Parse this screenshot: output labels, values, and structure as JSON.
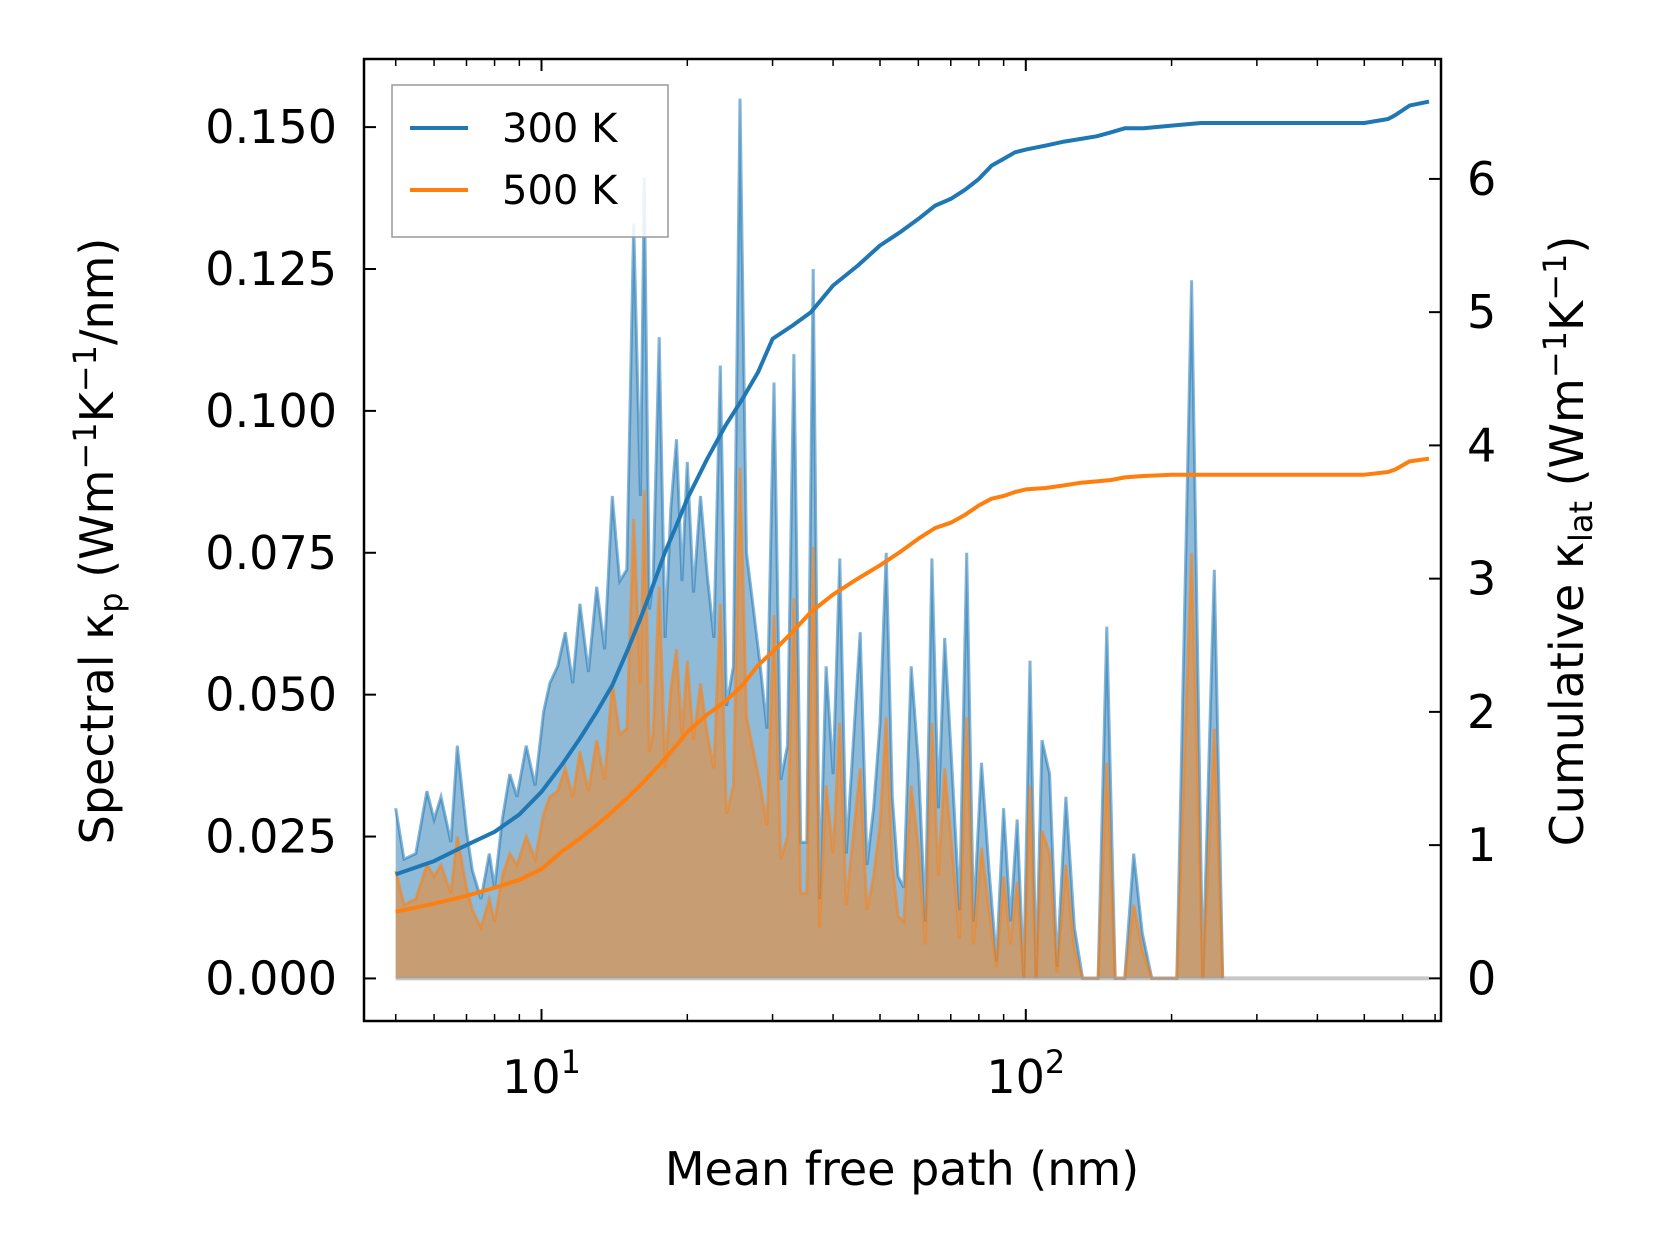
{
  "chart_data": {
    "type": "area",
    "title": "",
    "xlabel": "Mean free path (nm)",
    "xscale": "log",
    "xlim": [
      4.3,
      720
    ],
    "x_ticks": [
      {
        "value": 10,
        "base": "10",
        "exp": "1"
      },
      {
        "value": 100,
        "base": "10",
        "exp": "2"
      }
    ],
    "ylabel_left": {
      "pre": "Spectral κ",
      "sub": "p",
      "mid": " (Wm",
      "sup1": "−1",
      "k": "K",
      "sup2": "−1",
      "post": "/nm)"
    },
    "ylim_left": [
      -0.0075,
      0.162
    ],
    "yticks_left": [
      "0.000",
      "0.025",
      "0.050",
      "0.075",
      "0.100",
      "0.125",
      "0.150"
    ],
    "ylabel_right": {
      "pre": "Cumulative κ",
      "sub": "lat",
      "mid": " (Wm",
      "sup1": "−1",
      "k": "K",
      "sup2": "−1",
      "post": ")"
    },
    "ylim_right": [
      -0.32,
      6.9
    ],
    "yticks_right": [
      "0",
      "1",
      "2",
      "3",
      "4",
      "5",
      "6"
    ],
    "legend": {
      "position": "top-left",
      "entries": [
        "300 K",
        "500 K"
      ]
    },
    "colors": {
      "300 K": "#1f77b4",
      "500 K": "#ff7f0e"
    },
    "spectral": {
      "x": [
        5.0,
        5.2,
        5.5,
        5.8,
        6.0,
        6.2,
        6.5,
        6.7,
        7.0,
        7.2,
        7.5,
        7.8,
        8.0,
        8.3,
        8.6,
        8.9,
        9.3,
        9.7,
        10.1,
        10.4,
        10.8,
        11.2,
        11.6,
        12.0,
        12.5,
        13.0,
        13.5,
        14.0,
        14.5,
        15.0,
        15.5,
        16.0,
        16.3,
        16.7,
        17.0,
        17.5,
        18.0,
        18.5,
        19.0,
        19.5,
        20.0,
        20.6,
        21.3,
        22.0,
        22.7,
        23.4,
        24.1,
        24.9,
        25.7,
        26.5,
        27.4,
        28.3,
        29.2,
        30.2,
        31.2,
        32.2,
        33.2,
        34.3,
        35.3,
        36.4,
        37.5,
        38.7,
        40.0,
        41.3,
        42.6,
        44.0,
        45.5,
        47.0,
        48.5,
        50.0,
        51.5,
        53.0,
        54.5,
        56.0,
        58.0,
        60.0,
        62.0,
        64.0,
        66.0,
        68.0,
        70.5,
        73.0,
        75.5,
        78.0,
        81.0,
        84.0,
        87.0,
        90.0,
        93.0,
        96.0,
        99.0,
        102.0,
        105.0,
        108.0,
        112.0,
        116.0,
        121.0,
        126.0,
        131.0,
        136.0,
        141.0,
        147.0,
        153.0,
        160.0,
        167.0,
        174.0,
        182.0,
        205.0,
        220.0,
        232.0,
        245.0,
        255.0,
        265.0,
        330.0,
        430.0,
        560.0,
        575.0,
        590.0,
        605.0,
        620.0,
        635.0,
        650.0,
        665.0,
        680.0
      ],
      "300 K": [
        0.03,
        0.021,
        0.022,
        0.033,
        0.028,
        0.032,
        0.024,
        0.041,
        0.026,
        0.019,
        0.014,
        0.022,
        0.016,
        0.028,
        0.036,
        0.032,
        0.041,
        0.034,
        0.047,
        0.052,
        0.055,
        0.061,
        0.052,
        0.066,
        0.054,
        0.069,
        0.058,
        0.085,
        0.07,
        0.072,
        0.133,
        0.085,
        0.141,
        0.065,
        0.07,
        0.113,
        0.06,
        0.083,
        0.095,
        0.07,
        0.091,
        0.068,
        0.085,
        0.071,
        0.06,
        0.108,
        0.048,
        0.055,
        0.155,
        0.075,
        0.065,
        0.055,
        0.044,
        0.105,
        0.035,
        0.041,
        0.11,
        0.024,
        0.024,
        0.125,
        0.014,
        0.055,
        0.036,
        0.074,
        0.022,
        0.041,
        0.061,
        0.02,
        0.03,
        0.045,
        0.075,
        0.032,
        0.018,
        0.016,
        0.055,
        0.038,
        0.01,
        0.074,
        0.03,
        0.06,
        0.036,
        0.012,
        0.075,
        0.01,
        0.038,
        0.019,
        0.003,
        0.03,
        0.01,
        0.028,
        0.0,
        0.056,
        0.0,
        0.042,
        0.036,
        0.002,
        0.032,
        0.009,
        0.0,
        0.0,
        0.0,
        0.062,
        0.0,
        0.0,
        0.022,
        0.008,
        0.0,
        0.0,
        0.123,
        0.0,
        0.072,
        0.0
      ],
      "500 K": [
        0.019,
        0.013,
        0.014,
        0.02,
        0.018,
        0.02,
        0.015,
        0.025,
        0.016,
        0.012,
        0.009,
        0.014,
        0.01,
        0.018,
        0.022,
        0.02,
        0.025,
        0.021,
        0.029,
        0.032,
        0.033,
        0.037,
        0.032,
        0.04,
        0.033,
        0.042,
        0.035,
        0.052,
        0.043,
        0.044,
        0.081,
        0.052,
        0.086,
        0.04,
        0.043,
        0.069,
        0.037,
        0.051,
        0.058,
        0.043,
        0.056,
        0.042,
        0.052,
        0.043,
        0.037,
        0.066,
        0.029,
        0.034,
        0.09,
        0.046,
        0.04,
        0.034,
        0.027,
        0.064,
        0.021,
        0.025,
        0.067,
        0.015,
        0.015,
        0.076,
        0.009,
        0.034,
        0.022,
        0.045,
        0.013,
        0.025,
        0.037,
        0.012,
        0.018,
        0.027,
        0.046,
        0.02,
        0.011,
        0.01,
        0.034,
        0.023,
        0.006,
        0.045,
        0.018,
        0.037,
        0.022,
        0.007,
        0.046,
        0.006,
        0.023,
        0.012,
        0.002,
        0.018,
        0.006,
        0.017,
        0.0,
        0.034,
        0.0,
        0.026,
        0.022,
        0.001,
        0.02,
        0.005,
        0.0,
        0.0,
        0.0,
        0.038,
        0.0,
        0.0,
        0.013,
        0.005,
        0.0,
        0.0,
        0.075,
        0.0,
        0.044,
        0.0
      ]
    },
    "cumulative": {
      "x": [
        5.0,
        6.0,
        7.0,
        8.0,
        9.0,
        10.0,
        11.0,
        12.0,
        13.0,
        14.0,
        15.0,
        16.0,
        17.0,
        18.0,
        19.0,
        20.0,
        22.0,
        24.0,
        26.0,
        28.0,
        30.0,
        33.0,
        36.0,
        40.0,
        45.0,
        50.0,
        55.0,
        60.0,
        65.0,
        70.0,
        75.0,
        80.0,
        85.0,
        90.0,
        95.0,
        100.0,
        110.0,
        120.0,
        130.0,
        140.0,
        150.0,
        160.0,
        175.0,
        200.0,
        230.0,
        260.0,
        300.0,
        400.0,
        500.0,
        560.0,
        580.0,
        620.0,
        680.0
      ],
      "300 K": [
        0.78,
        0.88,
        1.0,
        1.1,
        1.23,
        1.4,
        1.6,
        1.8,
        2.0,
        2.2,
        2.45,
        2.7,
        2.95,
        3.2,
        3.4,
        3.6,
        3.9,
        4.15,
        4.35,
        4.55,
        4.8,
        4.9,
        5.0,
        5.2,
        5.35,
        5.5,
        5.6,
        5.7,
        5.8,
        5.85,
        5.92,
        6.0,
        6.1,
        6.15,
        6.2,
        6.22,
        6.25,
        6.28,
        6.3,
        6.32,
        6.35,
        6.38,
        6.38,
        6.4,
        6.42,
        6.42,
        6.42,
        6.42,
        6.42,
        6.45,
        6.48,
        6.55,
        6.58
      ],
      "500 K": [
        0.5,
        0.56,
        0.62,
        0.68,
        0.74,
        0.82,
        0.95,
        1.05,
        1.15,
        1.25,
        1.35,
        1.45,
        1.55,
        1.65,
        1.75,
        1.85,
        1.98,
        2.08,
        2.2,
        2.35,
        2.45,
        2.6,
        2.75,
        2.88,
        3.0,
        3.1,
        3.2,
        3.3,
        3.38,
        3.42,
        3.48,
        3.55,
        3.6,
        3.62,
        3.65,
        3.67,
        3.68,
        3.7,
        3.72,
        3.73,
        3.74,
        3.76,
        3.77,
        3.78,
        3.78,
        3.78,
        3.78,
        3.78,
        3.78,
        3.8,
        3.82,
        3.88,
        3.9
      ]
    }
  }
}
